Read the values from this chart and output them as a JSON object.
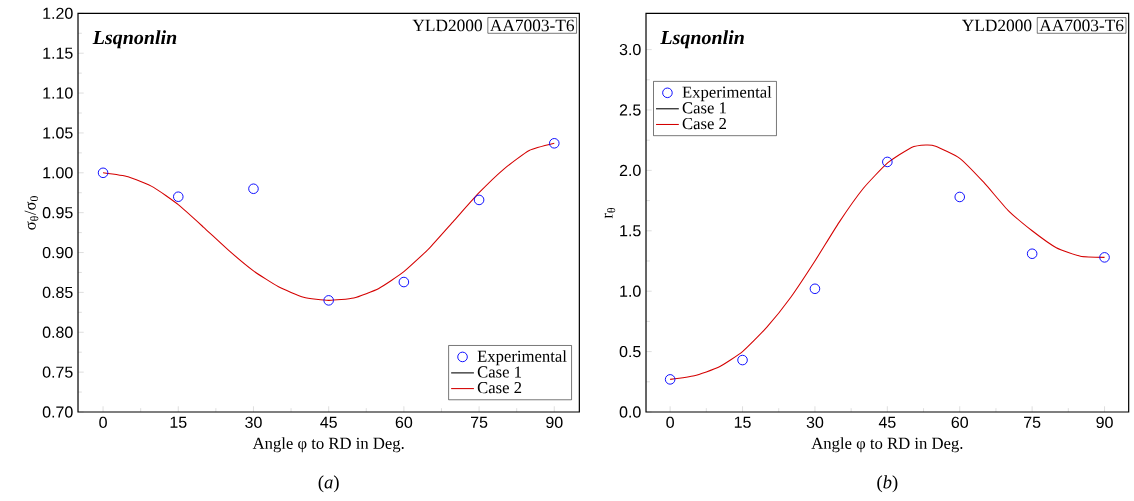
{
  "chart_data": [
    {
      "type": "line",
      "xlabel": "Angle φ to RD in Deg.",
      "ylabel": "σ$_{θ}$/σ$_{0}$",
      "xlim": [
        -5,
        95
      ],
      "ylim": [
        0.7,
        1.2
      ],
      "xticks": [
        0,
        15,
        30,
        45,
        60,
        75,
        90
      ],
      "yticks": [
        {
          "value": 0.7,
          "label": "0.70"
        },
        {
          "value": 0.75,
          "label": "0.75"
        },
        {
          "value": 0.8,
          "label": "0.80"
        },
        {
          "value": 0.85,
          "label": "0.85"
        },
        {
          "value": 0.9,
          "label": "0.90"
        },
        {
          "value": 0.95,
          "label": "0.95"
        },
        {
          "value": 1.0,
          "label": "1.00"
        },
        {
          "value": 1.05,
          "label": "1.05"
        },
        {
          "value": 1.1,
          "label": "1.10"
        },
        {
          "value": 1.15,
          "label": "1.15"
        },
        {
          "value": 1.2,
          "label": "1.20"
        }
      ],
      "legend": "bottom right",
      "annotations": [
        "Lsqnonlin",
        "YLD2000",
        "AA7003-T6",
        "(*a*)"
      ],
      "series": [
        {
          "name": "Experimental",
          "type": "scatter",
          "marker": "circle",
          "color": "#0000ff",
          "x": [
            0,
            15,
            30,
            45,
            60,
            75,
            90
          ],
          "values": [
            1.0,
            0.97,
            0.98,
            0.84,
            0.863,
            0.966,
            1.037
          ]
        },
        {
          "name": "Case 1",
          "type": "line",
          "color": "#000000"
        },
        {
          "name": "Case 2",
          "type": "line",
          "color": "#d40000",
          "x": [
            0,
            5,
            10,
            15,
            20,
            25,
            30,
            35,
            40,
            45,
            50,
            55,
            60,
            65,
            70,
            75,
            80,
            85,
            90
          ],
          "values": [
            1.0,
            0.995,
            0.982,
            0.96,
            0.932,
            0.903,
            0.877,
            0.857,
            0.844,
            0.84,
            0.843,
            0.855,
            0.876,
            0.905,
            0.94,
            0.975,
            1.005,
            1.028,
            1.037
          ]
        }
      ]
    },
    {
      "type": "line",
      "xlabel": "Angle φ to RD in Deg.",
      "ylabel": "r$_{θ}$",
      "xlim": [
        -5,
        95
      ],
      "ylim": [
        0,
        3.3
      ],
      "xticks": [
        0,
        15,
        30,
        45,
        60,
        75,
        90
      ],
      "yticks": [
        {
          "value": 0,
          "label": "0.0"
        },
        {
          "value": 0.5,
          "label": "0.5"
        },
        {
          "value": 1.0,
          "label": "1.0"
        },
        {
          "value": 1.5,
          "label": "1.5"
        },
        {
          "value": 2.0,
          "label": "2.0"
        },
        {
          "value": 2.5,
          "label": "2.5"
        },
        {
          "value": 3.0,
          "label": "3.0"
        }
      ],
      "legend": "top left",
      "annotations": [
        "Lsqnonlin",
        "YLD2000",
        "AA7003-T6",
        "(*b*)"
      ],
      "series": [
        {
          "name": "Experimental",
          "type": "scatter",
          "marker": "circle",
          "color": "#0000ff",
          "x": [
            0,
            15,
            30,
            45,
            60,
            75,
            90
          ],
          "values": [
            0.27,
            0.43,
            1.02,
            2.07,
            1.78,
            1.31,
            1.28
          ]
        },
        {
          "name": "Case 1",
          "type": "line",
          "color": "#000000"
        },
        {
          "name": "Case 2",
          "type": "line",
          "color": "#d40000",
          "x": [
            0,
            5,
            10,
            15,
            20,
            25,
            30,
            35,
            40,
            45,
            50,
            53,
            55,
            60,
            65,
            70,
            75,
            80,
            85,
            90
          ],
          "values": [
            0.27,
            0.3,
            0.37,
            0.5,
            0.7,
            0.95,
            1.25,
            1.57,
            1.85,
            2.06,
            2.19,
            2.21,
            2.2,
            2.1,
            1.9,
            1.67,
            1.5,
            1.36,
            1.29,
            1.28
          ]
        }
      ]
    }
  ]
}
